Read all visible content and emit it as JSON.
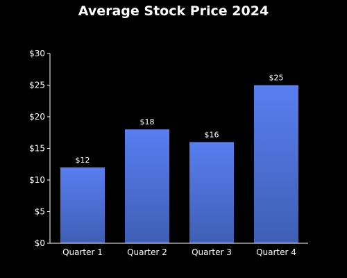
{
  "chart_data": {
    "type": "bar",
    "title": "Average Stock Price 2024",
    "categories": [
      "Quarter 1",
      "Quarter 2",
      "Quarter 3",
      "Quarter 4"
    ],
    "values": [
      12,
      18,
      16,
      25
    ],
    "value_labels": [
      "$12",
      "$18",
      "$16",
      "$25"
    ],
    "y_ticks": [
      0,
      5,
      10,
      15,
      20,
      25,
      30
    ],
    "y_tick_labels": [
      "$0",
      "$5",
      "$10",
      "$15",
      "$20",
      "$25",
      "$30"
    ],
    "ylim": [
      0,
      30
    ],
    "xlabel": "",
    "ylabel": "",
    "grid": false,
    "colors": {
      "background": "#000000",
      "bar_top": "#587ef0",
      "bar_bottom": "#3e5fb4",
      "axis": "#ffffff",
      "text": "#ffffff"
    }
  }
}
